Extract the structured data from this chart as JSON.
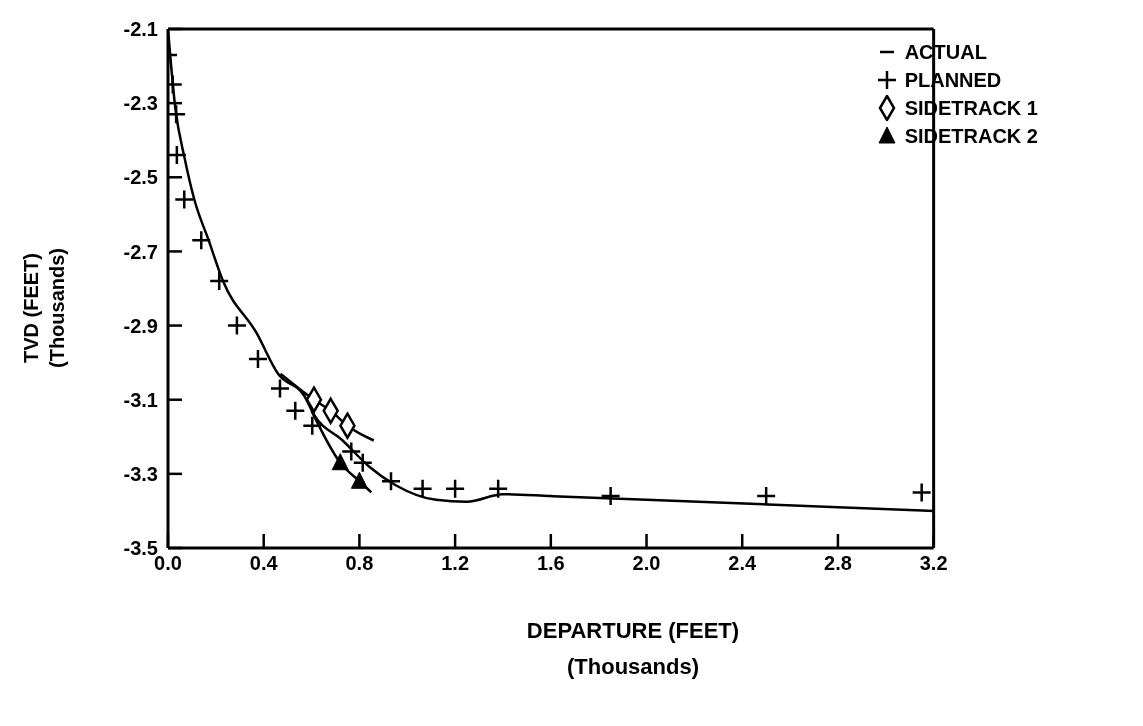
{
  "chart_data": {
    "type": "line",
    "xlabel": "DEPARTURE (FEET)\n(Thousands)",
    "ylabel": "TVD (FEET)\n(Thousands)",
    "xlim": [
      0,
      3.2
    ],
    "xticks": [
      {
        "value": 0,
        "label": "0.0"
      },
      0.4,
      0.8,
      1.2,
      1.6,
      {
        "value": 2,
        "label": "2.0"
      },
      2.4,
      2.8,
      3.2
    ],
    "ylim": [
      -3.5,
      -2.1
    ],
    "yticks": [
      -2.1,
      -2.3,
      -2.5,
      -2.7,
      -2.9,
      -3.1,
      -3.3,
      -3.5
    ],
    "grid": false,
    "legend": "top right",
    "series": [
      {
        "name": "ACTUAL",
        "marker": "none",
        "line_style": "solid",
        "color": "#000000",
        "x": [
          0,
          0.03,
          0.07,
          0.11,
          0.17,
          0.23,
          0.37,
          0.46,
          0.57,
          0.61,
          0.73,
          0.84,
          0.95,
          1.12,
          1.25,
          1.4,
          1.6,
          2.0,
          2.8,
          3.2
        ],
        "values": [
          -2.1,
          -2.31,
          -2.45,
          -2.56,
          -2.67,
          -2.78,
          -2.92,
          -3.03,
          -3.09,
          -3.14,
          -3.21,
          -3.28,
          -3.33,
          -3.37,
          -3.375,
          -3.355,
          -3.36,
          -3.37,
          -3.39,
          -3.4
        ]
      },
      {
        "name": "PLANNED",
        "type": "scatter",
        "marker": "cross",
        "color": "#000000",
        "x": [
          0,
          0.02,
          0.034,
          0.037,
          0.068,
          0.139,
          0.214,
          0.288,
          0.376,
          0.468,
          0.532,
          0.603,
          0.766,
          0.814,
          0.932,
          1.064,
          1.2,
          1.38,
          1.85,
          2.5,
          3.15
        ],
        "values": [
          -2.17,
          -2.25,
          -2.33,
          -2.44,
          -2.56,
          -2.67,
          -2.78,
          -2.9,
          -2.99,
          -3.07,
          -3.13,
          -3.17,
          -3.24,
          -3.27,
          -3.32,
          -3.34,
          -3.34,
          -3.34,
          -3.36,
          -3.36,
          -3.35
        ]
      },
      {
        "marker": "none",
        "line_style": "solid",
        "color": "#000000",
        "x": [
          0.47,
          0.61,
          0.68,
          0.75,
          0.86
        ],
        "values": [
          -3.03,
          -3.1,
          -3.13,
          -3.17,
          -3.21
        ]
      },
      {
        "name": "SIDETRACK 1",
        "type": "scatter",
        "marker": "diamond",
        "color": "#000000",
        "x": [
          0.61,
          0.68,
          0.75
        ],
        "values": [
          -3.1,
          -3.13,
          -3.17
        ]
      },
      {
        "marker": "none",
        "line_style": "solid",
        "color": "#000000",
        "x": [
          0.6,
          0.72,
          0.8,
          0.85
        ],
        "values": [
          -3.13,
          -3.27,
          -3.32,
          -3.35
        ]
      },
      {
        "name": "SIDETRACK 2",
        "type": "scatter",
        "marker": "triangle",
        "color": "#000000",
        "x": [
          0.72,
          0.8
        ],
        "values": [
          -3.27,
          -3.32
        ]
      }
    ]
  }
}
